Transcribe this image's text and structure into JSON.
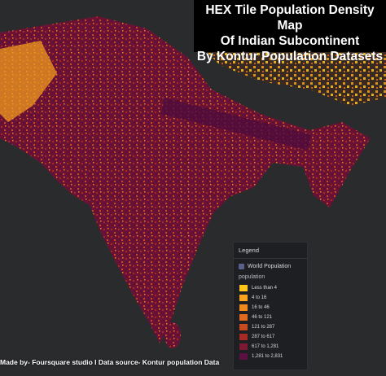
{
  "title": {
    "lines": [
      "HEX Tile Population Density Map",
      "Of Indian Subcontinent",
      "By Kontur Population Datasets"
    ]
  },
  "legend": {
    "heading": "Legend",
    "layer": "World Population",
    "field": "population",
    "items": [
      {
        "label": "Less than 4",
        "color": "#fec51b"
      },
      {
        "label": "4 to 16",
        "color": "#f9a41c"
      },
      {
        "label": "16 to 46",
        "color": "#f08a1f"
      },
      {
        "label": "46 to 121",
        "color": "#df6a1f"
      },
      {
        "label": "121 to 287",
        "color": "#c74b1f"
      },
      {
        "label": "287 to 617",
        "color": "#a52b23"
      },
      {
        "label": "617 to 1,281",
        "color": "#7c1a34"
      },
      {
        "label": "1,281 to 2,831",
        "color": "#5a1042"
      }
    ]
  },
  "credit": "Made by- Foursquare  studio I Data source- Kontur  population  Data"
}
